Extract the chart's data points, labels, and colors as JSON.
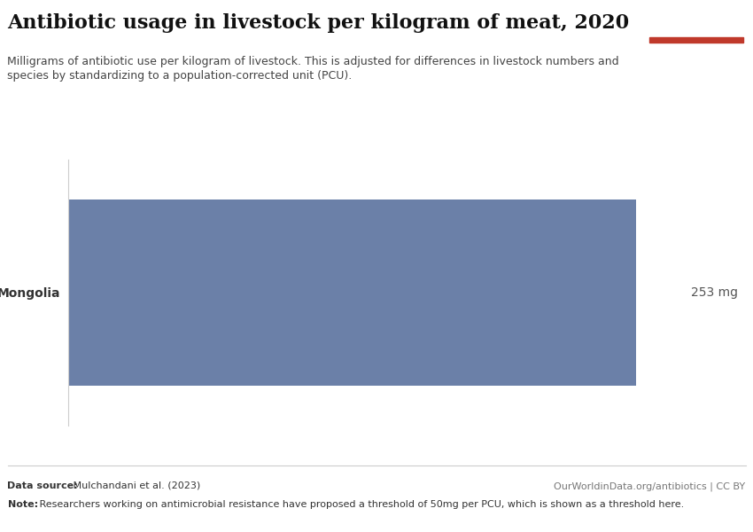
{
  "title": "Antibiotic usage in livestock per kilogram of meat, 2020",
  "subtitle_line1": "Milligrams of antibiotic use per kilogram of livestock. This is adjusted for differences in livestock numbers and",
  "subtitle_line2": "species by standardizing to a population-corrected unit (PCU).",
  "country": "Mongolia",
  "value": 253,
  "value_label": "253 mg",
  "bar_color": "#6b80a8",
  "bar_color_edge": "#8090b8",
  "xlim": [
    0,
    275
  ],
  "ylim": [
    -0.5,
    0.5
  ],
  "data_source_bold": "Data source:",
  "data_source_rest": " Mulchandani et al. (2023)",
  "attribution": "OurWorldinData.org/antibiotics | CC BY",
  "note_bold": "Note:",
  "note_rest": " Researchers working on antimicrobial resistance have proposed a threshold of 50mg per PCU, which is shown as a threshold here.",
  "owid_box_color": "#1a3a5c",
  "owid_box_red": "#c0392b",
  "threshold": 50,
  "bg_color": "#ffffff",
  "text_color": "#333333",
  "label_color": "#555555"
}
